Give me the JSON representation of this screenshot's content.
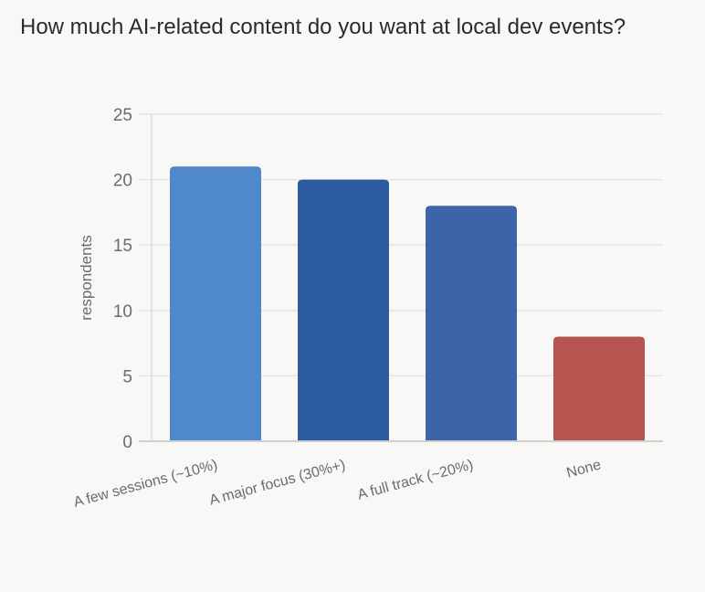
{
  "chart_data": {
    "type": "bar",
    "title": "How much AI-related content do you want at local dev events?",
    "xlabel": "",
    "ylabel": "respondents",
    "categories": [
      "A few sessions (~10%)",
      "A major focus (30%+)",
      "A full track (~20%)",
      "None"
    ],
    "values": [
      21,
      20,
      18,
      8
    ],
    "colors": [
      "#5088cc",
      "#2e5ca0",
      "#3d64a8",
      "#b85450"
    ],
    "ylim": [
      0,
      25
    ],
    "yticks": [
      0,
      5,
      10,
      15,
      20,
      25
    ],
    "grid": true,
    "legend": "none"
  }
}
